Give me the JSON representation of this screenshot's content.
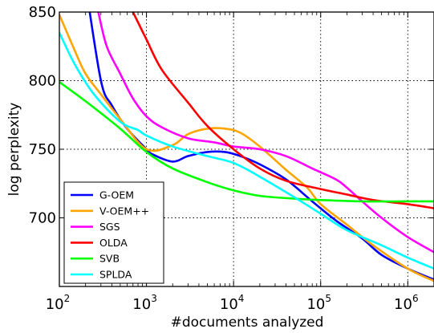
{
  "chart_data": {
    "type": "line",
    "xlabel": "#documents analyzed",
    "ylabel": "log perplexity",
    "xscale": "log",
    "xlim": [
      100,
      2000000
    ],
    "ylim": [
      650,
      850
    ],
    "yticks": [
      "700",
      "750",
      "800",
      "850"
    ],
    "xticks": [
      {
        "base": "10",
        "exp": "2",
        "value": 100
      },
      {
        "base": "10",
        "exp": "3",
        "value": 1000
      },
      {
        "base": "10",
        "exp": "4",
        "value": 10000
      },
      {
        "base": "10",
        "exp": "5",
        "value": 100000
      },
      {
        "base": "10",
        "exp": "6",
        "value": 1000000
      }
    ],
    "grid": true,
    "legend_position": "bottom-left",
    "series": [
      {
        "name": "G-OEM",
        "color": "#0000ff",
        "points": [
          [
            200,
            870
          ],
          [
            300,
            800
          ],
          [
            400,
            782
          ],
          [
            600,
            765
          ],
          [
            1000,
            750
          ],
          [
            1200,
            746
          ],
          [
            2000,
            741
          ],
          [
            3000,
            745
          ],
          [
            5000,
            748
          ],
          [
            8000,
            748
          ],
          [
            12000,
            745
          ],
          [
            20000,
            739
          ],
          [
            40000,
            728
          ],
          [
            80000,
            712
          ],
          [
            150000,
            698
          ],
          [
            300000,
            685
          ],
          [
            500000,
            673
          ],
          [
            1000000,
            663
          ],
          [
            2000000,
            655
          ]
        ]
      },
      {
        "name": "V-OEM++",
        "color": "#ffa500",
        "points": [
          [
            100,
            848
          ],
          [
            150,
            822
          ],
          [
            200,
            805
          ],
          [
            300,
            790
          ],
          [
            500,
            772
          ],
          [
            1000,
            750
          ],
          [
            2000,
            753
          ],
          [
            3000,
            761
          ],
          [
            5000,
            765
          ],
          [
            8000,
            765
          ],
          [
            12000,
            762
          ],
          [
            20000,
            752
          ],
          [
            40000,
            735
          ],
          [
            70000,
            722
          ],
          [
            100000,
            710
          ],
          [
            200000,
            695
          ],
          [
            400000,
            680
          ],
          [
            1000000,
            663
          ],
          [
            2000000,
            654
          ]
        ]
      },
      {
        "name": "SGS",
        "color": "#ff00ff",
        "points": [
          [
            280,
            850
          ],
          [
            350,
            825
          ],
          [
            500,
            805
          ],
          [
            700,
            787
          ],
          [
            1000,
            774
          ],
          [
            1500,
            766
          ],
          [
            3000,
            758
          ],
          [
            6000,
            755
          ],
          [
            10000,
            752
          ],
          [
            20000,
            750
          ],
          [
            40000,
            745
          ],
          [
            80000,
            736
          ],
          [
            150000,
            728
          ],
          [
            200000,
            722
          ],
          [
            300000,
            712
          ],
          [
            500000,
            700
          ],
          [
            1000000,
            686
          ],
          [
            2000000,
            675
          ]
        ]
      },
      {
        "name": "OLDA",
        "color": "#ff0000",
        "points": [
          [
            700,
            850
          ],
          [
            1000,
            830
          ],
          [
            1500,
            808
          ],
          [
            3000,
            784
          ],
          [
            5000,
            767
          ],
          [
            10000,
            750
          ],
          [
            20000,
            736
          ],
          [
            40000,
            727
          ],
          [
            100000,
            721
          ],
          [
            200000,
            717
          ],
          [
            400000,
            713
          ],
          [
            1000000,
            710
          ],
          [
            2000000,
            707
          ]
        ]
      },
      {
        "name": "SVB",
        "color": "#00ff00",
        "points": [
          [
            100,
            799
          ],
          [
            200,
            785
          ],
          [
            500,
            765
          ],
          [
            1000,
            748
          ],
          [
            2000,
            736
          ],
          [
            5000,
            726
          ],
          [
            10000,
            720
          ],
          [
            20000,
            716
          ],
          [
            50000,
            714
          ],
          [
            100000,
            713
          ],
          [
            300000,
            712
          ],
          [
            1000000,
            712
          ],
          [
            2000000,
            712
          ]
        ]
      },
      {
        "name": "SPLDA",
        "color": "#00ffff",
        "points": [
          [
            100,
            835
          ],
          [
            150,
            812
          ],
          [
            250,
            790
          ],
          [
            500,
            770
          ],
          [
            800,
            764
          ],
          [
            1000,
            760
          ],
          [
            2000,
            752
          ],
          [
            5000,
            745
          ],
          [
            10000,
            740
          ],
          [
            20000,
            730
          ],
          [
            50000,
            715
          ],
          [
            100000,
            703
          ],
          [
            200000,
            691
          ],
          [
            500000,
            680
          ],
          [
            1000000,
            671
          ],
          [
            2000000,
            663
          ]
        ]
      }
    ]
  }
}
